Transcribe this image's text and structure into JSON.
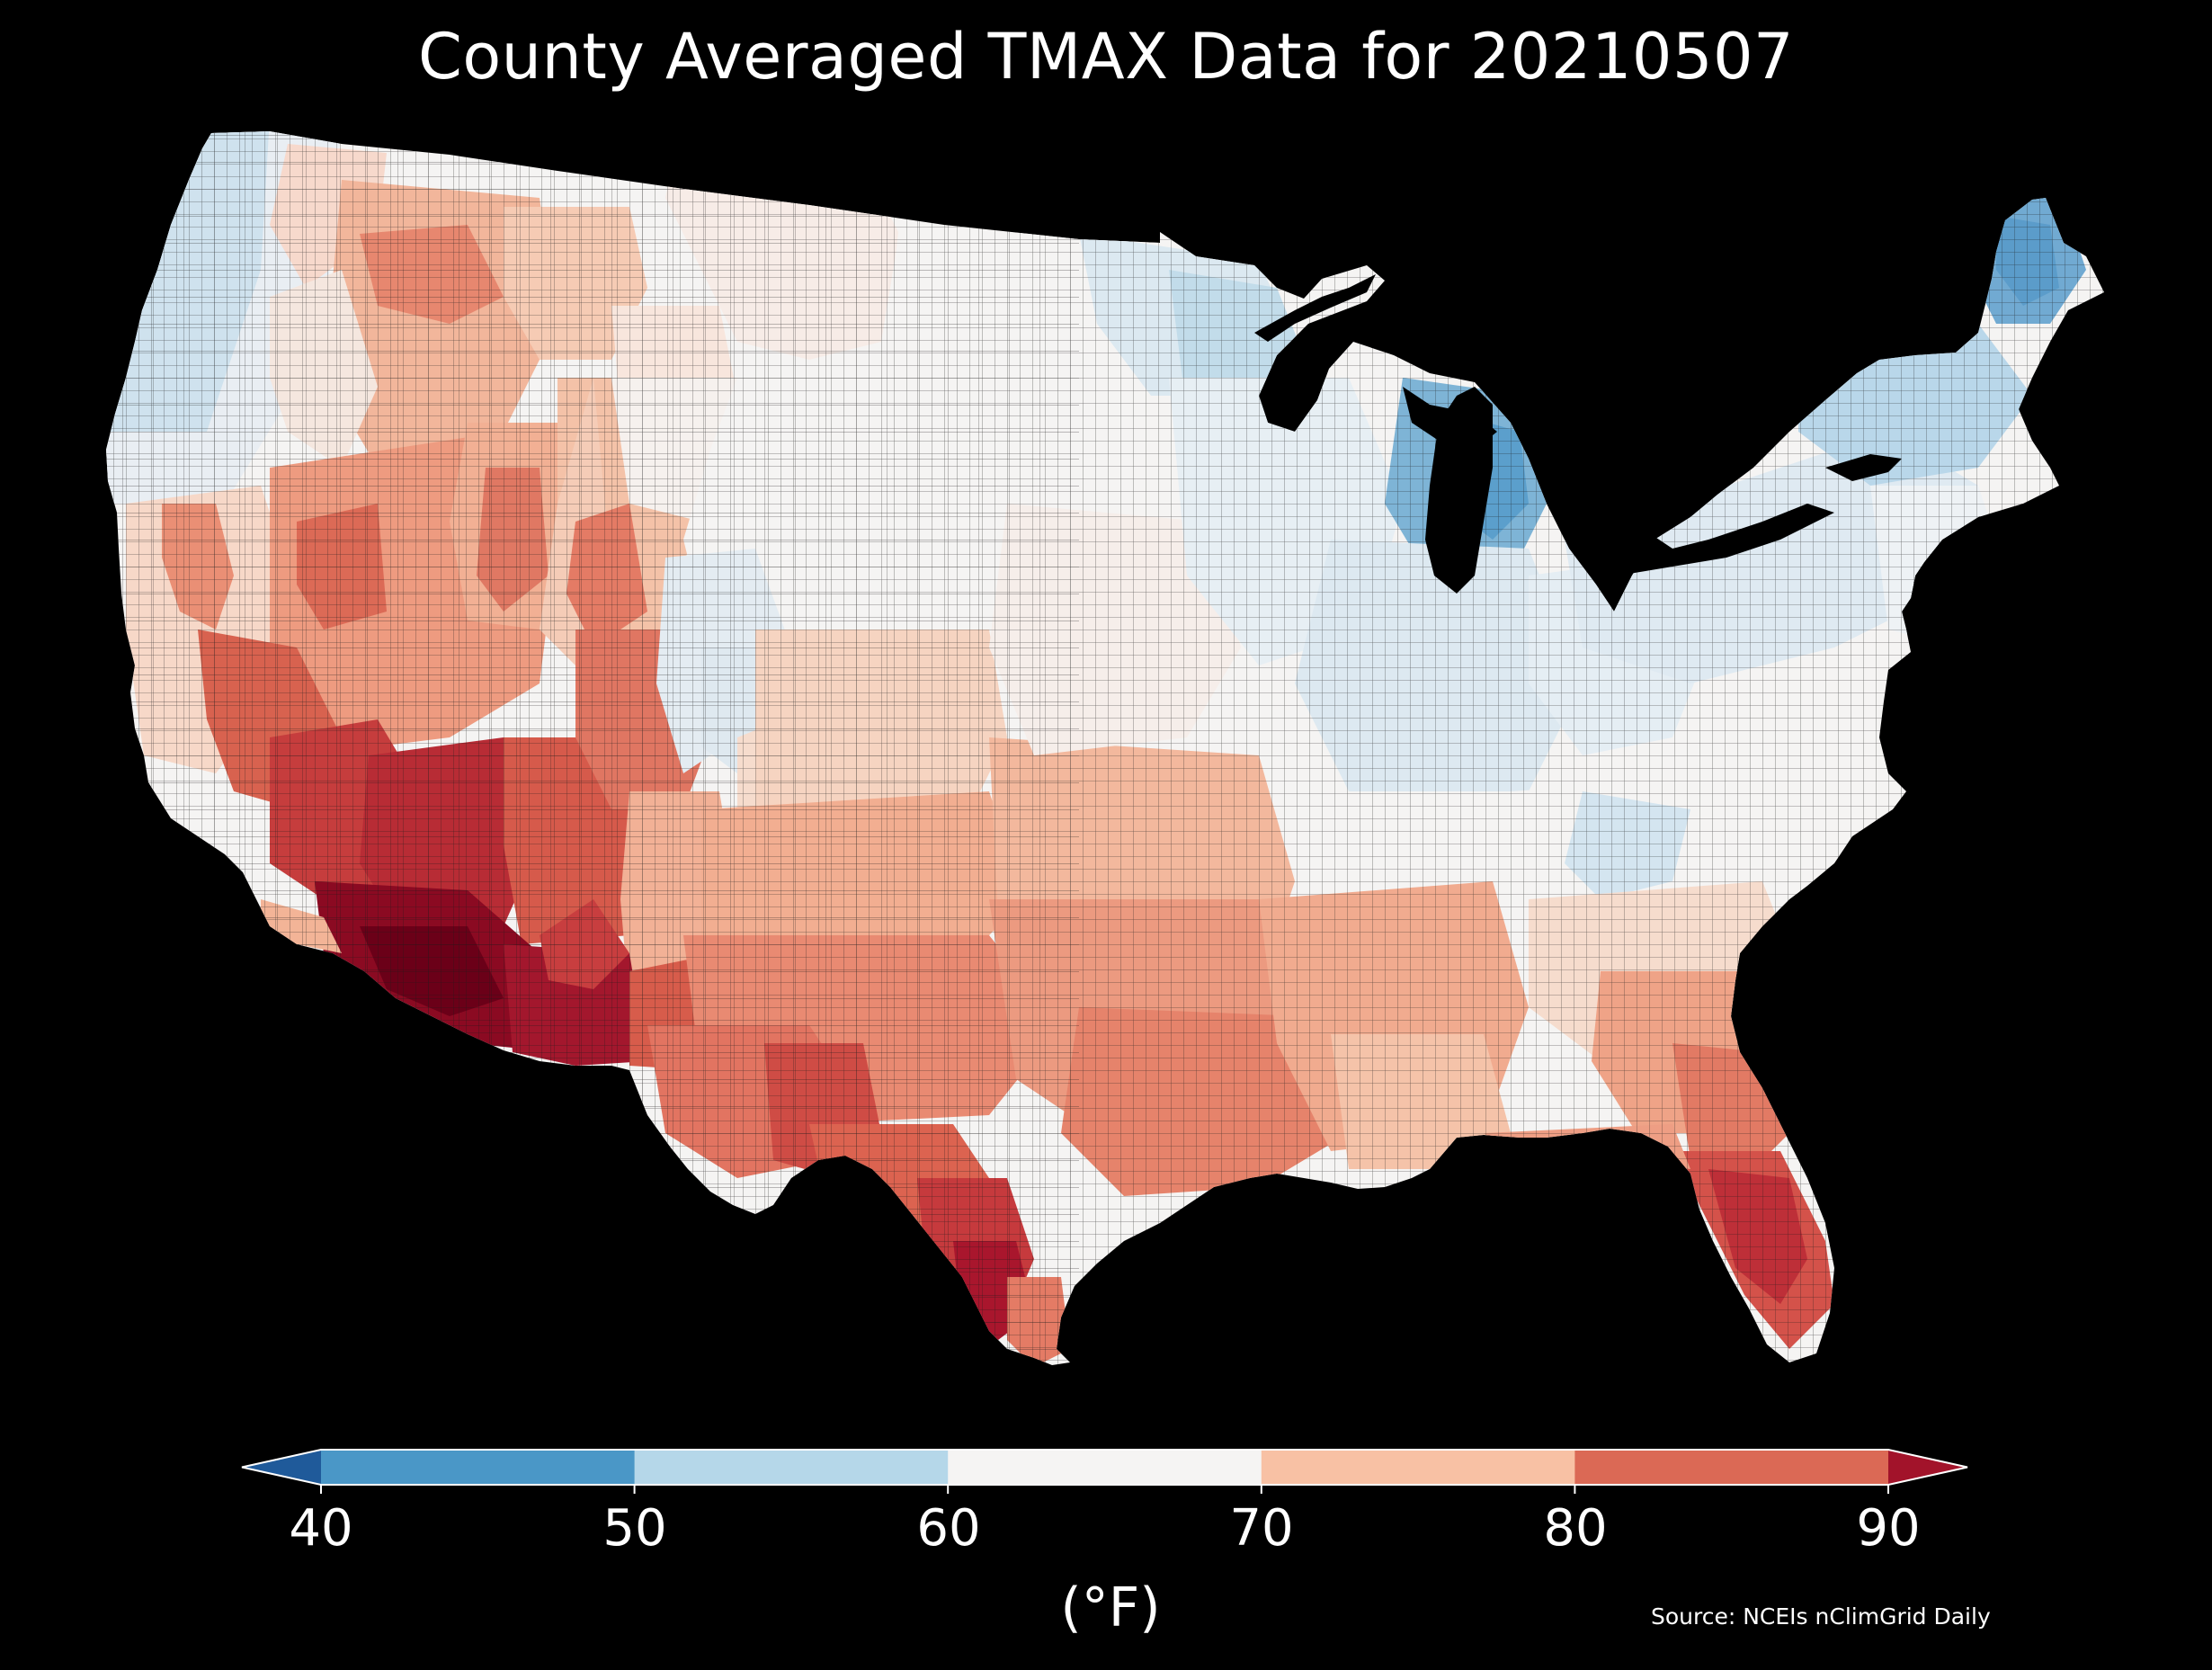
{
  "title": "County Averaged TMAX Data for 20210507",
  "colorbar": {
    "ticks": [
      "40",
      "50",
      "60",
      "70",
      "80",
      "90"
    ],
    "unit_label": "(°F)",
    "bins": [
      {
        "range": "<40",
        "color": "#1f5a9a"
      },
      {
        "range": "40-50",
        "color": "#4a97c7"
      },
      {
        "range": "50-60",
        "color": "#b5d7e9"
      },
      {
        "range": "60-70",
        "color": "#f5f4f3"
      },
      {
        "range": "70-80",
        "color": "#f8c1a4"
      },
      {
        "range": "80-90",
        "color": "#db6955"
      },
      {
        "range": ">90",
        "color": "#a2132a"
      }
    ]
  },
  "source": "Source: NCEIs nClimGrid Daily",
  "map": {
    "region": "Contiguous United States (county level)",
    "variable": "TMAX",
    "date": "20210507",
    "colors": {
      "background": "#000000",
      "county_border": "#222222",
      "water": "#000000"
    }
  }
}
